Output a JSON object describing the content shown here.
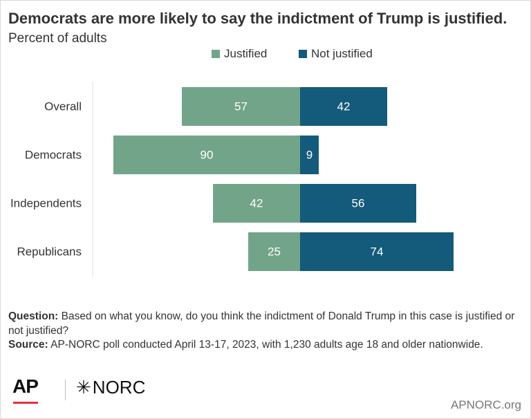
{
  "chart_data": {
    "type": "bar",
    "orientation": "horizontal",
    "stacking": "diverging",
    "title": "Democrats are more likely to say the indictment of Trump is justified.",
    "subtitle": "Percent of adults",
    "categories": [
      "Overall",
      "Democrats",
      "Independents",
      "Republicans"
    ],
    "series": [
      {
        "name": "Justified",
        "values": [
          57,
          90,
          42,
          25
        ],
        "color": "#72a48a"
      },
      {
        "name": "Not justified",
        "values": [
          42,
          9,
          56,
          74
        ],
        "color": "#145a7a"
      }
    ],
    "legend_position": "top",
    "grid": false
  },
  "notes": {
    "question_label": "Question:",
    "question_text": "Based on what you know, do you think the indictment of Donald Trump in this case is justified or not justified?",
    "source_label": "Source:",
    "source_text": "AP-NORC poll conducted April 13-17, 2023, with 1,230 adults age 18 and older nationwide."
  },
  "logos": {
    "ap": "AP",
    "norc": "NORC",
    "norc_star_icon": "asterisk-star-icon"
  },
  "site": "APNORC.org",
  "colors": {
    "label_light": "#ffffff",
    "text": "#333333",
    "axis_line": "#dddddd"
  }
}
